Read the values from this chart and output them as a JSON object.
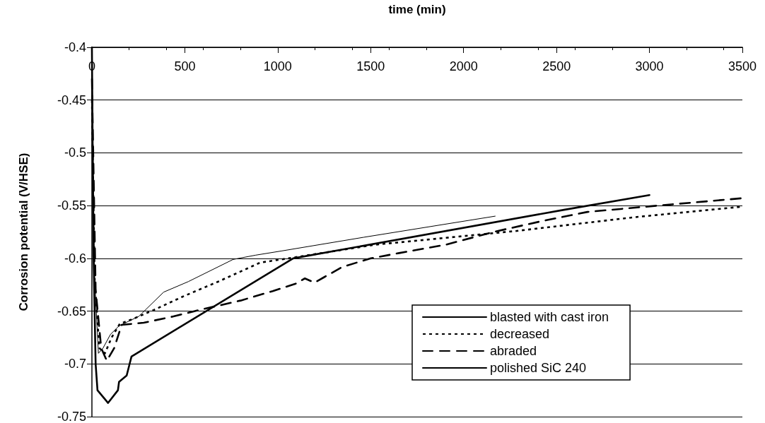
{
  "chart_data": {
    "type": "line",
    "xlabel": "time (min)",
    "ylabel": "Corrosion potential (V/HSE)",
    "xlim": [
      0,
      3500
    ],
    "xticks": [
      0,
      500,
      1000,
      1500,
      2000,
      2500,
      3000,
      3500
    ],
    "ylim": [
      -0.75,
      -0.4
    ],
    "yticks": [
      -0.75,
      -0.7,
      -0.65,
      -0.6,
      -0.55,
      -0.5,
      -0.45,
      -0.4
    ],
    "grid": "y",
    "legend": "bottom right",
    "marker": "none",
    "series": [
      {
        "name": "blasted with cast iron",
        "color": "#000000",
        "line_style": "solid",
        "x": [
          0,
          15,
          35,
          60,
          100,
          146,
          252,
          386,
          519,
          760,
          880,
          1020,
          1463,
          2170
        ],
        "values": [
          -0.42,
          -0.62,
          -0.69,
          -0.685,
          -0.672,
          -0.664,
          -0.655,
          -0.632,
          -0.622,
          -0.601,
          -0.597,
          -0.593,
          -0.58,
          -0.56
        ]
      },
      {
        "name": "decreased",
        "color": "#000000",
        "line_style": "dotted",
        "x": [
          0,
          15,
          40,
          70,
          106,
          150,
          213,
          332,
          492,
          680,
          906,
          1020,
          1526,
          2286,
          2920,
          3500
        ],
        "values": [
          -0.45,
          -0.62,
          -0.685,
          -0.69,
          -0.675,
          -0.662,
          -0.658,
          -0.649,
          -0.636,
          -0.622,
          -0.604,
          -0.601,
          -0.587,
          -0.574,
          -0.561,
          -0.551
        ]
      },
      {
        "name": "abraded",
        "color": "#000000",
        "line_style": "dashed",
        "x": [
          0,
          20,
          50,
          80,
          120,
          160,
          279,
          439,
          600,
          800,
          973,
          1096,
          1146,
          1197,
          1248,
          1349,
          1501,
          1653,
          1906,
          2160,
          2413,
          2666,
          3046,
          3500
        ],
        "values": [
          -0.43,
          -0.63,
          -0.685,
          -0.697,
          -0.685,
          -0.663,
          -0.661,
          -0.655,
          -0.648,
          -0.64,
          -0.631,
          -0.624,
          -0.619,
          -0.623,
          -0.618,
          -0.608,
          -0.6,
          -0.595,
          -0.587,
          -0.575,
          -0.565,
          -0.556,
          -0.55,
          -0.543
        ]
      },
      {
        "name": "polished SiC 240",
        "color": "#000000",
        "line_style": "solid",
        "x": [
          0,
          8,
          20,
          30,
          87,
          140,
          146,
          187,
          213,
          1083,
          2540,
          3000
        ],
        "values": [
          -0.4,
          -0.59,
          -0.7,
          -0.725,
          -0.737,
          -0.725,
          -0.717,
          -0.711,
          -0.693,
          -0.6,
          -0.554,
          -0.54
        ]
      }
    ]
  }
}
